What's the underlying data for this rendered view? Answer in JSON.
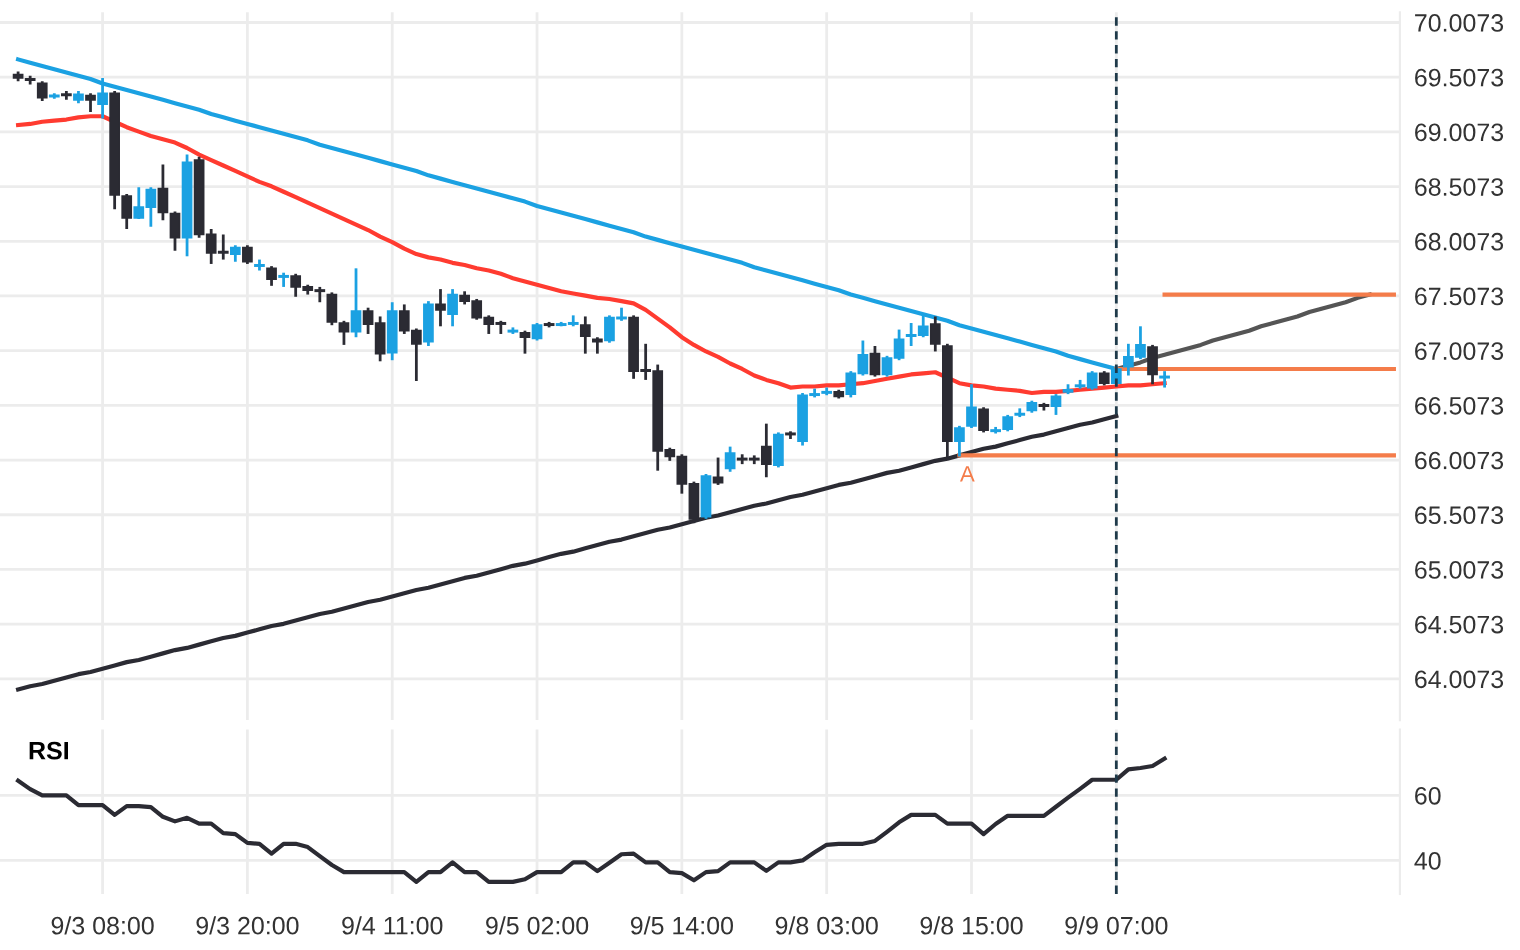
{
  "chart_data": [
    {
      "type": "candlestick",
      "categories": [
        null,
        null,
        null,
        null,
        null,
        null,
        null,
        null,
        null,
        null,
        null,
        null,
        null,
        null,
        null,
        null,
        null,
        null,
        null,
        null,
        null,
        null,
        null,
        null,
        null,
        null,
        null,
        null,
        null,
        null,
        null,
        null,
        null,
        null,
        null,
        null,
        null,
        null,
        null,
        null,
        null,
        null,
        null,
        null,
        null,
        null,
        null,
        null,
        null,
        null,
        null,
        null,
        null,
        null,
        null,
        null,
        null,
        null,
        null,
        null,
        null,
        null,
        null,
        null,
        null,
        null,
        null,
        null,
        null,
        null,
        null,
        null,
        null,
        null,
        null,
        null,
        null,
        null,
        null,
        null,
        null,
        null,
        null,
        null,
        null,
        null,
        null,
        null,
        null,
        null,
        null,
        null,
        null,
        null,
        null,
        null,
        null,
        null,
        null,
        null,
        null,
        null,
        null,
        null,
        null,
        null,
        null,
        null,
        null,
        null,
        null,
        null,
        null,
        null,
        null
      ],
      "ohlc": [
        [
          69.53,
          69.56,
          69.47,
          69.5
        ],
        [
          69.49,
          69.52,
          69.44,
          69.48
        ],
        [
          69.45,
          69.47,
          69.29,
          69.32
        ],
        [
          69.33,
          69.36,
          69.31,
          69.34
        ],
        [
          69.35,
          69.38,
          69.3,
          69.34
        ],
        [
          69.3,
          69.38,
          69.27,
          69.35
        ],
        [
          69.34,
          69.36,
          69.19,
          69.3
        ],
        [
          69.26,
          69.5,
          69.13,
          69.36
        ],
        [
          69.36,
          69.38,
          68.3,
          68.43
        ],
        [
          68.42,
          68.44,
          68.12,
          68.22
        ],
        [
          68.22,
          68.5,
          68.21,
          68.32
        ],
        [
          68.32,
          68.5,
          68.14,
          68.48
        ],
        [
          68.49,
          68.71,
          68.2,
          68.27
        ],
        [
          68.26,
          68.28,
          67.92,
          68.04
        ],
        [
          68.04,
          68.8,
          67.87,
          68.73
        ],
        [
          68.75,
          68.78,
          68.04,
          68.07
        ],
        [
          68.07,
          68.12,
          67.8,
          67.9
        ],
        [
          67.91,
          68.07,
          67.84,
          67.9
        ],
        [
          67.89,
          67.97,
          67.82,
          67.95
        ],
        [
          67.95,
          67.97,
          67.8,
          67.82
        ],
        [
          67.78,
          67.84,
          67.74,
          67.79
        ],
        [
          67.76,
          67.78,
          67.6,
          67.66
        ],
        [
          67.68,
          67.72,
          67.59,
          67.69
        ],
        [
          67.69,
          67.71,
          67.5,
          67.59
        ],
        [
          67.59,
          67.61,
          67.52,
          67.56
        ],
        [
          67.56,
          67.59,
          67.45,
          67.55
        ],
        [
          67.52,
          67.54,
          67.24,
          67.27
        ],
        [
          67.26,
          67.28,
          67.06,
          67.18
        ],
        [
          67.18,
          67.76,
          67.13,
          67.37
        ],
        [
          67.37,
          67.4,
          67.16,
          67.25
        ],
        [
          67.26,
          67.32,
          66.91,
          66.98
        ],
        [
          66.99,
          67.45,
          66.92,
          67.37
        ],
        [
          67.37,
          67.43,
          67.16,
          67.19
        ],
        [
          67.19,
          67.21,
          66.73,
          67.07
        ],
        [
          67.09,
          67.46,
          67.05,
          67.43
        ],
        [
          67.43,
          67.57,
          67.23,
          67.38
        ],
        [
          67.34,
          67.57,
          67.23,
          67.52
        ],
        [
          67.51,
          67.55,
          67.43,
          67.46
        ],
        [
          67.46,
          67.48,
          67.29,
          67.31
        ],
        [
          67.31,
          67.33,
          67.16,
          67.25
        ],
        [
          67.26,
          67.28,
          67.16,
          67.25
        ],
        [
          67.18,
          67.22,
          67.16,
          67.19
        ],
        [
          67.17,
          67.19,
          66.98,
          67.13
        ],
        [
          67.12,
          67.26,
          67.1,
          67.24
        ],
        [
          67.25,
          67.27,
          67.22,
          67.24
        ],
        [
          67.24,
          67.27,
          67.23,
          67.25
        ],
        [
          67.25,
          67.33,
          67.23,
          67.26
        ],
        [
          67.24,
          67.32,
          66.98,
          67.14
        ],
        [
          67.11,
          67.13,
          66.98,
          67.09
        ],
        [
          67.1,
          67.33,
          67.08,
          67.31
        ],
        [
          67.3,
          67.4,
          67.28,
          67.31
        ],
        [
          67.31,
          67.33,
          66.75,
          66.82
        ],
        [
          66.83,
          67.07,
          66.74,
          66.82
        ],
        [
          66.82,
          66.88,
          65.91,
          66.09
        ],
        [
          66.1,
          66.12,
          66.0,
          66.04
        ],
        [
          66.04,
          66.06,
          65.7,
          65.79
        ],
        [
          65.79,
          65.81,
          65.43,
          65.47
        ],
        [
          65.49,
          65.88,
          65.47,
          65.86
        ],
        [
          65.85,
          66.03,
          65.78,
          65.8
        ],
        [
          65.93,
          66.13,
          65.9,
          66.07
        ],
        [
          66.02,
          66.06,
          65.97,
          66.01
        ],
        [
          66.02,
          66.05,
          65.97,
          66.01
        ],
        [
          66.13,
          66.34,
          65.85,
          65.97
        ],
        [
          65.96,
          66.26,
          65.94,
          66.24
        ],
        [
          66.25,
          66.27,
          66.2,
          66.24
        ],
        [
          66.18,
          66.62,
          66.14,
          66.6
        ],
        [
          66.6,
          66.66,
          66.58,
          66.61
        ],
        [
          66.62,
          66.67,
          66.6,
          66.63
        ],
        [
          66.63,
          66.65,
          66.57,
          66.59
        ],
        [
          66.61,
          66.82,
          66.58,
          66.8
        ],
        [
          66.8,
          67.1,
          66.78,
          66.97
        ],
        [
          66.98,
          67.05,
          66.77,
          66.79
        ],
        [
          66.79,
          66.96,
          66.77,
          66.94
        ],
        [
          66.94,
          67.2,
          66.92,
          67.11
        ],
        [
          67.14,
          67.26,
          67.05,
          67.15
        ],
        [
          67.15,
          67.34,
          67.13,
          67.23
        ],
        [
          67.25,
          67.32,
          67.0,
          67.07
        ],
        [
          67.05,
          67.07,
          66.03,
          66.18
        ],
        [
          66.18,
          66.32,
          66.04,
          66.3
        ],
        [
          66.32,
          66.7,
          66.3,
          66.49
        ],
        [
          66.47,
          66.49,
          66.26,
          66.28
        ],
        [
          66.27,
          66.31,
          66.25,
          66.28
        ],
        [
          66.29,
          66.42,
          66.27,
          66.4
        ],
        [
          66.42,
          66.48,
          66.4,
          66.43
        ],
        [
          66.46,
          66.55,
          66.44,
          66.53
        ],
        [
          66.51,
          66.53,
          66.46,
          66.5
        ],
        [
          66.5,
          66.61,
          66.42,
          66.59
        ],
        [
          66.63,
          66.7,
          66.61,
          66.65
        ],
        [
          66.68,
          66.74,
          66.66,
          66.69
        ],
        [
          66.67,
          66.82,
          66.65,
          66.8
        ],
        [
          66.8,
          66.82,
          66.69,
          66.71
        ],
        [
          66.71,
          66.86,
          66.69,
          66.84
        ],
        [
          66.86,
          67.07,
          66.78,
          66.95
        ],
        [
          66.95,
          67.23,
          66.93,
          67.06
        ],
        [
          67.04,
          67.06,
          66.7,
          66.79
        ],
        [
          66.76,
          66.82,
          66.67,
          66.77
        ],
        null,
        null,
        null,
        null,
        null,
        null,
        null,
        null,
        null,
        null,
        null,
        null,
        null,
        null,
        null,
        null,
        null,
        null,
        null
      ],
      "colors": [
        "#2b2b33",
        "#2b2b33",
        "#2b2b33",
        "#1ba1e2",
        "#2b2b33",
        "#1ba1e2",
        "#2b2b33",
        "#1ba1e2",
        "#2b2b33",
        "#2b2b33",
        "#1ba1e2",
        "#1ba1e2",
        "#2b2b33",
        "#2b2b33",
        "#1ba1e2",
        "#2b2b33",
        "#2b2b33",
        "#2b2b33",
        "#1ba1e2",
        "#2b2b33",
        "#1ba1e2",
        "#2b2b33",
        "#1ba1e2",
        "#2b2b33",
        "#2b2b33",
        "#2b2b33",
        "#2b2b33",
        "#2b2b33",
        "#1ba1e2",
        "#2b2b33",
        "#2b2b33",
        "#1ba1e2",
        "#2b2b33",
        "#2b2b33",
        "#1ba1e2",
        "#2b2b33",
        "#1ba1e2",
        "#2b2b33",
        "#2b2b33",
        "#2b2b33",
        "#2b2b33",
        "#1ba1e2",
        "#2b2b33",
        "#1ba1e2",
        "#2b2b33",
        "#1ba1e2",
        "#1ba1e2",
        "#2b2b33",
        "#2b2b33",
        "#1ba1e2",
        "#1ba1e2",
        "#2b2b33",
        "#2b2b33",
        "#2b2b33",
        "#2b2b33",
        "#2b2b33",
        "#2b2b33",
        "#1ba1e2",
        "#2b2b33",
        "#1ba1e2",
        "#2b2b33",
        "#2b2b33",
        "#2b2b33",
        "#1ba1e2",
        "#2b2b33",
        "#1ba1e2",
        "#1ba1e2",
        "#1ba1e2",
        "#2b2b33",
        "#1ba1e2",
        "#1ba1e2",
        "#2b2b33",
        "#1ba1e2",
        "#1ba1e2",
        "#1ba1e2",
        "#1ba1e2",
        "#2b2b33",
        "#2b2b33",
        "#1ba1e2",
        "#1ba1e2",
        "#2b2b33",
        "#1ba1e2",
        "#1ba1e2",
        "#1ba1e2",
        "#1ba1e2",
        "#2b2b33",
        "#1ba1e2",
        "#1ba1e2",
        "#1ba1e2",
        "#1ba1e2",
        "#2b2b33",
        "#1ba1e2",
        "#1ba1e2",
        "#1ba1e2",
        "#2b2b33",
        "#1ba1e2",
        null,
        null,
        null,
        null,
        null,
        null,
        null,
        null,
        null,
        null,
        null,
        null,
        null,
        null,
        null,
        null,
        null,
        null,
        null
      ],
      "series": [
        {
          "type": "line",
          "color": "#ff3b30",
          "values": [
            69.07,
            69.08,
            69.1,
            69.11,
            69.12,
            69.14,
            69.15,
            69.15,
            69.1,
            69.05,
            69.01,
            68.97,
            68.94,
            68.91,
            68.86,
            68.8,
            68.75,
            68.7,
            68.65,
            68.6,
            68.55,
            68.51,
            68.46,
            68.41,
            68.36,
            68.31,
            68.26,
            68.21,
            68.16,
            68.11,
            68.05,
            68.0,
            67.94,
            67.89,
            67.86,
            67.84,
            67.81,
            67.79,
            67.76,
            67.74,
            67.71,
            67.67,
            67.64,
            67.61,
            67.58,
            67.55,
            67.53,
            67.51,
            67.49,
            67.48,
            67.46,
            67.44,
            67.38,
            67.3,
            67.22,
            67.13,
            67.06,
            67.0,
            66.95,
            66.89,
            66.84,
            66.78,
            66.74,
            66.71,
            66.67,
            66.68,
            66.68,
            66.69,
            66.69,
            66.7,
            66.71,
            66.73,
            66.75,
            66.77,
            66.79,
            66.8,
            66.81,
            66.76,
            66.71,
            66.69,
            66.68,
            66.66,
            66.65,
            66.64,
            66.62,
            66.63,
            66.63,
            66.64,
            66.65,
            66.66,
            66.67,
            66.68,
            66.69,
            66.69,
            66.7,
            66.71,
            null,
            null,
            null,
            null,
            null,
            null,
            null,
            null,
            null,
            null,
            null,
            null,
            null,
            null,
            null,
            null,
            null,
            null,
            null
          ]
        },
        {
          "type": "line",
          "color": "#1ba1e2",
          "values": [
            69.67,
            69.64,
            69.61,
            69.58,
            69.55,
            69.52,
            69.49,
            69.45,
            69.42,
            69.39,
            69.36,
            69.33,
            69.3,
            69.27,
            69.24,
            69.21,
            69.17,
            69.14,
            69.11,
            69.08,
            69.05,
            69.02,
            68.99,
            68.96,
            68.93,
            68.89,
            68.86,
            68.83,
            68.8,
            68.77,
            68.74,
            68.71,
            68.68,
            68.65,
            68.61,
            68.58,
            68.55,
            68.52,
            68.49,
            68.46,
            68.43,
            68.4,
            68.37,
            68.33,
            68.3,
            68.27,
            68.24,
            68.21,
            68.18,
            68.15,
            68.12,
            68.09,
            68.05,
            68.02,
            67.99,
            67.96,
            67.93,
            67.9,
            67.87,
            67.84,
            67.81,
            67.77,
            67.74,
            67.71,
            67.68,
            67.65,
            67.62,
            67.59,
            67.56,
            67.52,
            67.49,
            67.46,
            67.43,
            67.4,
            67.37,
            67.34,
            67.31,
            67.28,
            67.24,
            67.21,
            67.18,
            67.15,
            67.12,
            67.09,
            67.06,
            67.03,
            67.0,
            66.96,
            66.93,
            66.9,
            66.87,
            66.84,
            null,
            null,
            null,
            null,
            null,
            null,
            null,
            null,
            null,
            null,
            null,
            null,
            null,
            null,
            null,
            null,
            null,
            null,
            null,
            null,
            null,
            null,
            null
          ]
        },
        {
          "type": "line",
          "color": "#2b2b33",
          "values": [
            63.91,
            63.94,
            63.96,
            63.99,
            64.02,
            64.05,
            64.07,
            64.1,
            64.13,
            64.16,
            64.18,
            64.21,
            64.24,
            64.27,
            64.29,
            64.32,
            64.35,
            64.38,
            64.4,
            64.43,
            64.46,
            64.49,
            64.51,
            64.54,
            64.57,
            64.6,
            64.62,
            64.65,
            64.68,
            64.71,
            64.73,
            64.76,
            64.79,
            64.82,
            64.84,
            64.87,
            64.9,
            64.93,
            64.95,
            64.98,
            65.01,
            65.04,
            65.06,
            65.09,
            65.12,
            65.15,
            65.17,
            65.2,
            65.23,
            65.26,
            65.28,
            65.31,
            65.34,
            65.37,
            65.39,
            65.42,
            65.45,
            65.48,
            65.5,
            65.53,
            65.56,
            65.59,
            65.61,
            65.64,
            65.67,
            65.69,
            65.72,
            65.75,
            65.78,
            65.8,
            65.83,
            65.86,
            65.89,
            65.91,
            65.94,
            65.97,
            66.0,
            66.02,
            66.05,
            66.08,
            66.11,
            66.13,
            66.16,
            66.19,
            66.22,
            66.24,
            66.27,
            66.3,
            66.33,
            66.35,
            66.38,
            66.41,
            null,
            null,
            null,
            null,
            null,
            null,
            null,
            null,
            null,
            null,
            null,
            null,
            null,
            null,
            null,
            null,
            null,
            null,
            null,
            null,
            null,
            null,
            null
          ]
        },
        {
          "type": "line",
          "color": "#555555",
          "values": [
            null,
            null,
            null,
            null,
            null,
            null,
            null,
            null,
            null,
            null,
            null,
            null,
            null,
            null,
            null,
            null,
            null,
            null,
            null,
            null,
            null,
            null,
            null,
            null,
            null,
            null,
            null,
            null,
            null,
            null,
            null,
            null,
            null,
            null,
            null,
            null,
            null,
            null,
            null,
            null,
            null,
            null,
            null,
            null,
            null,
            null,
            null,
            null,
            null,
            null,
            null,
            null,
            null,
            null,
            null,
            null,
            null,
            null,
            null,
            null,
            null,
            null,
            null,
            null,
            null,
            null,
            null,
            null,
            null,
            null,
            null,
            null,
            null,
            null,
            null,
            null,
            null,
            null,
            null,
            null,
            null,
            null,
            null,
            null,
            null,
            null,
            null,
            null,
            null,
            null,
            null,
            66.84,
            66.87,
            66.9,
            66.94,
            66.97,
            67.0,
            67.03,
            67.06,
            67.1,
            67.13,
            67.16,
            67.19,
            67.23,
            67.26,
            67.29,
            67.32,
            67.36,
            67.39,
            67.42,
            67.45,
            67.49,
            67.52,
            null,
            null
          ]
        },
        {
          "type": "line",
          "color": "#f47c4a",
          "values": [
            null,
            null,
            null,
            null,
            null,
            null,
            null,
            null,
            null,
            null,
            null,
            null,
            null,
            null,
            null,
            null,
            null,
            null,
            null,
            null,
            null,
            null,
            null,
            null,
            null,
            null,
            null,
            null,
            null,
            null,
            null,
            null,
            null,
            null,
            null,
            null,
            null,
            null,
            null,
            null,
            null,
            null,
            null,
            null,
            null,
            null,
            null,
            null,
            null,
            null,
            null,
            null,
            null,
            null,
            null,
            null,
            null,
            null,
            null,
            null,
            null,
            null,
            null,
            null,
            null,
            null,
            null,
            null,
            null,
            null,
            null,
            null,
            null,
            null,
            null,
            null,
            null,
            null,
            null,
            null,
            null,
            null,
            null,
            null,
            null,
            null,
            null,
            null,
            null,
            null,
            null,
            null,
            null,
            null,
            null,
            67.52,
            67.52,
            67.52,
            67.52,
            67.52,
            67.52,
            67.52,
            67.52,
            67.52,
            67.52,
            67.52,
            67.52,
            67.52,
            67.52,
            67.52,
            67.52,
            67.52,
            67.52,
            67.52,
            67.52
          ]
        },
        {
          "type": "line",
          "color": "#f47c4a",
          "values": [
            null,
            null,
            null,
            null,
            null,
            null,
            null,
            null,
            null,
            null,
            null,
            null,
            null,
            null,
            null,
            null,
            null,
            null,
            null,
            null,
            null,
            null,
            null,
            null,
            null,
            null,
            null,
            null,
            null,
            null,
            null,
            null,
            null,
            null,
            null,
            null,
            null,
            null,
            null,
            null,
            null,
            null,
            null,
            null,
            null,
            null,
            null,
            null,
            null,
            null,
            null,
            null,
            null,
            null,
            null,
            null,
            null,
            null,
            null,
            null,
            null,
            null,
            null,
            null,
            null,
            null,
            null,
            null,
            null,
            null,
            null,
            null,
            null,
            null,
            null,
            null,
            null,
            null,
            null,
            null,
            null,
            null,
            null,
            null,
            null,
            null,
            null,
            null,
            null,
            null,
            null,
            66.84,
            66.84,
            66.84,
            66.84,
            66.84,
            66.84,
            66.84,
            66.84,
            66.84,
            66.84,
            66.84,
            66.84,
            66.84,
            66.84,
            66.84,
            66.84,
            66.84,
            66.84,
            66.84,
            66.84,
            66.84,
            66.84,
            66.84,
            66.84
          ]
        },
        {
          "type": "line",
          "color": "#f47c4a",
          "values": [
            null,
            null,
            null,
            null,
            null,
            null,
            null,
            null,
            null,
            null,
            null,
            null,
            null,
            null,
            null,
            null,
            null,
            null,
            null,
            null,
            null,
            null,
            null,
            null,
            null,
            null,
            null,
            null,
            null,
            null,
            null,
            null,
            null,
            null,
            null,
            null,
            null,
            null,
            null,
            null,
            null,
            null,
            null,
            null,
            null,
            null,
            null,
            null,
            null,
            null,
            null,
            null,
            null,
            null,
            null,
            null,
            null,
            null,
            null,
            null,
            null,
            null,
            null,
            null,
            null,
            null,
            null,
            null,
            null,
            null,
            null,
            null,
            null,
            null,
            null,
            null,
            null,
            null,
            66.05,
            66.05,
            66.05,
            66.05,
            66.05,
            66.05,
            66.05,
            66.05,
            66.05,
            66.05,
            66.05,
            66.05,
            66.05,
            66.05,
            66.05,
            66.05,
            66.05,
            66.05,
            66.05,
            66.05,
            66.05,
            66.05,
            66.05,
            66.05,
            66.05,
            66.05,
            66.05,
            66.05,
            66.05,
            66.05,
            66.05,
            66.05,
            66.05,
            66.05,
            66.05,
            66.05,
            66.05
          ]
        }
      ],
      "ylim": [
        63.63,
        70.1
      ],
      "yticks": [
        64.0073,
        64.5073,
        65.0073,
        65.5073,
        66.0073,
        66.5073,
        67.0073,
        67.5073,
        68.0073,
        68.5073,
        69.0073,
        69.5073,
        70.0073
      ],
      "tick_labels": "y",
      "grid": true,
      "annotations": [
        "A"
      ]
    },
    {
      "type": "line",
      "title": "RSI",
      "categories": [
        null,
        null,
        null,
        null,
        null,
        null,
        null,
        "9/3 08:00",
        null,
        null,
        null,
        null,
        null,
        null,
        null,
        null,
        null,
        null,
        null,
        "9/3 20:00",
        null,
        null,
        null,
        null,
        null,
        null,
        null,
        null,
        null,
        null,
        null,
        "9/4 11:00",
        null,
        null,
        null,
        null,
        null,
        null,
        null,
        null,
        null,
        null,
        null,
        "9/5 02:00",
        null,
        null,
        null,
        null,
        null,
        null,
        null,
        null,
        null,
        null,
        null,
        "9/5 14:00",
        null,
        null,
        null,
        null,
        null,
        null,
        null,
        null,
        null,
        null,
        null,
        "9/8 03:00",
        null,
        null,
        null,
        null,
        null,
        null,
        null,
        null,
        null,
        null,
        null,
        "9/8 15:00",
        null,
        null,
        null,
        null,
        null,
        null,
        null,
        null,
        null,
        null,
        null,
        "9/9 07:00",
        null,
        null,
        null,
        null,
        null,
        null,
        null,
        null,
        null,
        null,
        null,
        null,
        null,
        null,
        null,
        null,
        null,
        null,
        null,
        null,
        null,
        null,
        null
      ],
      "series": [
        {
          "color": "#2b2b33",
          "values": [
            64.5,
            61.9,
            60,
            60,
            60,
            57,
            57,
            57,
            54,
            56.7,
            56.7,
            56.4,
            53.4,
            52,
            53.1,
            51.3,
            51.3,
            48.4,
            48.1,
            45.4,
            45.1,
            42.1,
            45.1,
            45.1,
            44.1,
            41.3,
            38.6,
            36.4,
            36.4,
            36.4,
            36.4,
            36.4,
            36.4,
            33.4,
            36.4,
            36.4,
            39.4,
            36.4,
            36.4,
            33.4,
            33.4,
            33.4,
            34.2,
            36.4,
            36.4,
            36.4,
            39.4,
            39.4,
            36.7,
            39.3,
            41.9,
            42.1,
            39.4,
            39.4,
            36.4,
            36.1,
            33.9,
            36.4,
            36.7,
            39.4,
            39.4,
            39.4,
            36.8,
            39.4,
            39.4,
            40.0,
            42.5,
            44.8,
            45.1,
            45.1,
            45.1,
            46.0,
            48.8,
            51.7,
            54,
            54,
            54,
            51.3,
            51.3,
            51.3,
            48.1,
            51.2,
            53.7,
            53.7,
            53.7,
            53.7,
            56.5,
            59.3,
            62.0,
            64.8,
            64.8,
            64.8,
            68.0,
            68.4,
            69.0,
            71.3,
            null,
            null,
            null,
            null,
            null,
            null,
            null,
            null,
            null,
            null,
            null,
            null,
            null,
            null,
            null,
            null,
            null,
            null,
            null
          ]
        }
      ],
      "ylim": [
        29.7,
        80.2
      ],
      "yticks": [
        40,
        60
      ],
      "grid": true,
      "ref_lines": [
        {
          "axis": "x",
          "value": "9/9 07:00",
          "color": "#1f3a4a",
          "line_style": "dashed"
        }
      ]
    }
  ]
}
